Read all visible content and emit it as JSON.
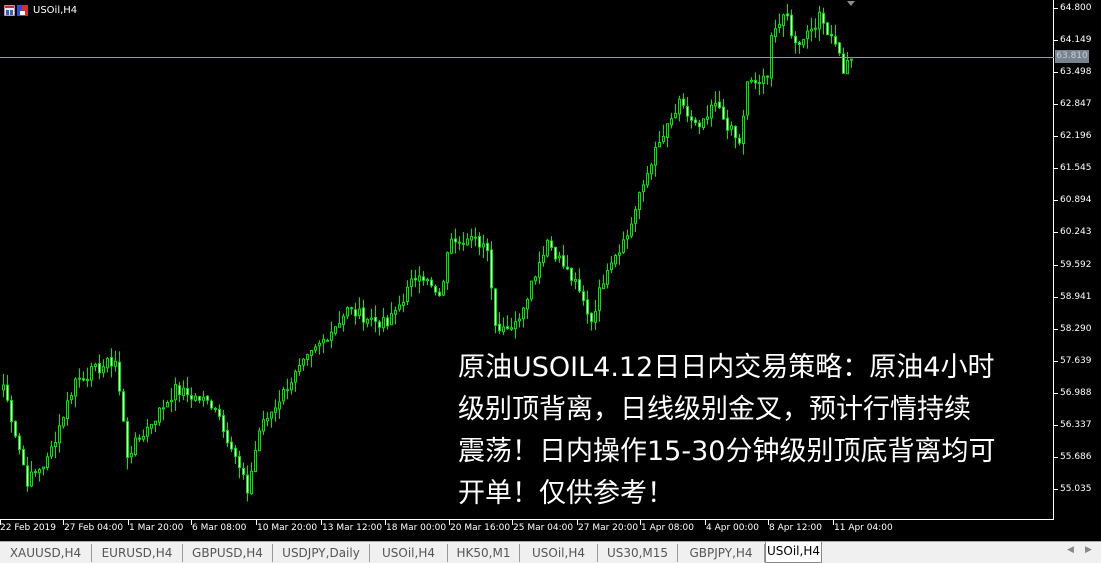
{
  "window": {
    "title": "USOil,H4"
  },
  "price_axis": {
    "labels": [
      "64.800",
      "64.149",
      "63.498",
      "62.847",
      "62.196",
      "61.545",
      "60.894",
      "60.243",
      "59.592",
      "58.941",
      "58.290",
      "57.639",
      "56.988",
      "56.337",
      "55.686",
      "55.035"
    ],
    "current_price": "63.810"
  },
  "time_axis": {
    "labels": [
      "22 Feb 2019",
      "27 Feb 04:00",
      "1 Mar 20:00",
      "6 Mar 08:00",
      "10 Mar 20:00",
      "13 Mar 12:00",
      "18 Mar 00:00",
      "20 Mar 16:00",
      "25 Mar 04:00",
      "27 Mar 20:00",
      "1 Apr 08:00",
      "4 Apr 00:00",
      "8 Apr 12:00",
      "11 Apr 04:00"
    ]
  },
  "overlay_text": {
    "lines": [
      "原油USOIL4.12日日内交易策略：原油4小时",
      "级别顶背离，日线级别金叉，预计行情持续",
      "震荡！日内操作15-30分钟级别顶底背离均可",
      "开单！仅供参考！"
    ]
  },
  "tabs": [
    {
      "label": "XAUUSD,H4"
    },
    {
      "label": "EURUSD,H4"
    },
    {
      "label": "GBPUSD,H4"
    },
    {
      "label": "USDJPY,Daily"
    },
    {
      "label": "USOil,H4"
    },
    {
      "label": "HK50,M1"
    },
    {
      "label": "USOil,H4"
    },
    {
      "label": "US30,M15"
    },
    {
      "label": "GBPJPY,H4"
    },
    {
      "label": "USOil,H4",
      "active": true
    }
  ],
  "colors": {
    "background": "#000000",
    "candle": "#00e600",
    "bear_body": "#ffffff",
    "bid_line": "#8c9aa8"
  },
  "chart_data": {
    "type": "candlestick",
    "symbol": "USOil",
    "timeframe": "H4",
    "ylim": [
      55.035,
      64.8
    ],
    "close_path": [
      [
        0,
        57.15
      ],
      [
        6,
        55.2
      ],
      [
        11,
        55.62
      ],
      [
        18,
        57.25
      ],
      [
        28,
        57.65
      ],
      [
        31,
        55.73
      ],
      [
        43,
        57.05
      ],
      [
        53,
        56.74
      ],
      [
        61,
        55.0
      ],
      [
        64,
        56.23
      ],
      [
        72,
        57.25
      ],
      [
        86,
        58.67
      ],
      [
        96,
        58.36
      ],
      [
        104,
        59.48
      ],
      [
        109,
        58.87
      ],
      [
        112,
        60.19
      ],
      [
        121,
        59.99
      ],
      [
        123,
        58.36
      ],
      [
        128,
        58.36
      ],
      [
        136,
        60.09
      ],
      [
        143,
        59.18
      ],
      [
        147,
        58.47
      ],
      [
        151,
        59.58
      ],
      [
        156,
        60.19
      ],
      [
        162,
        61.71
      ],
      [
        169,
        62.83
      ],
      [
        174,
        62.32
      ],
      [
        178,
        62.83
      ],
      [
        184,
        62.02
      ],
      [
        186,
        63.24
      ],
      [
        191,
        63.34
      ],
      [
        192,
        64.35
      ],
      [
        196,
        64.6
      ],
      [
        198,
        64.05
      ],
      [
        204,
        64.6
      ],
      [
        208,
        64.15
      ],
      [
        210,
        63.54
      ],
      [
        212,
        63.81
      ]
    ]
  }
}
